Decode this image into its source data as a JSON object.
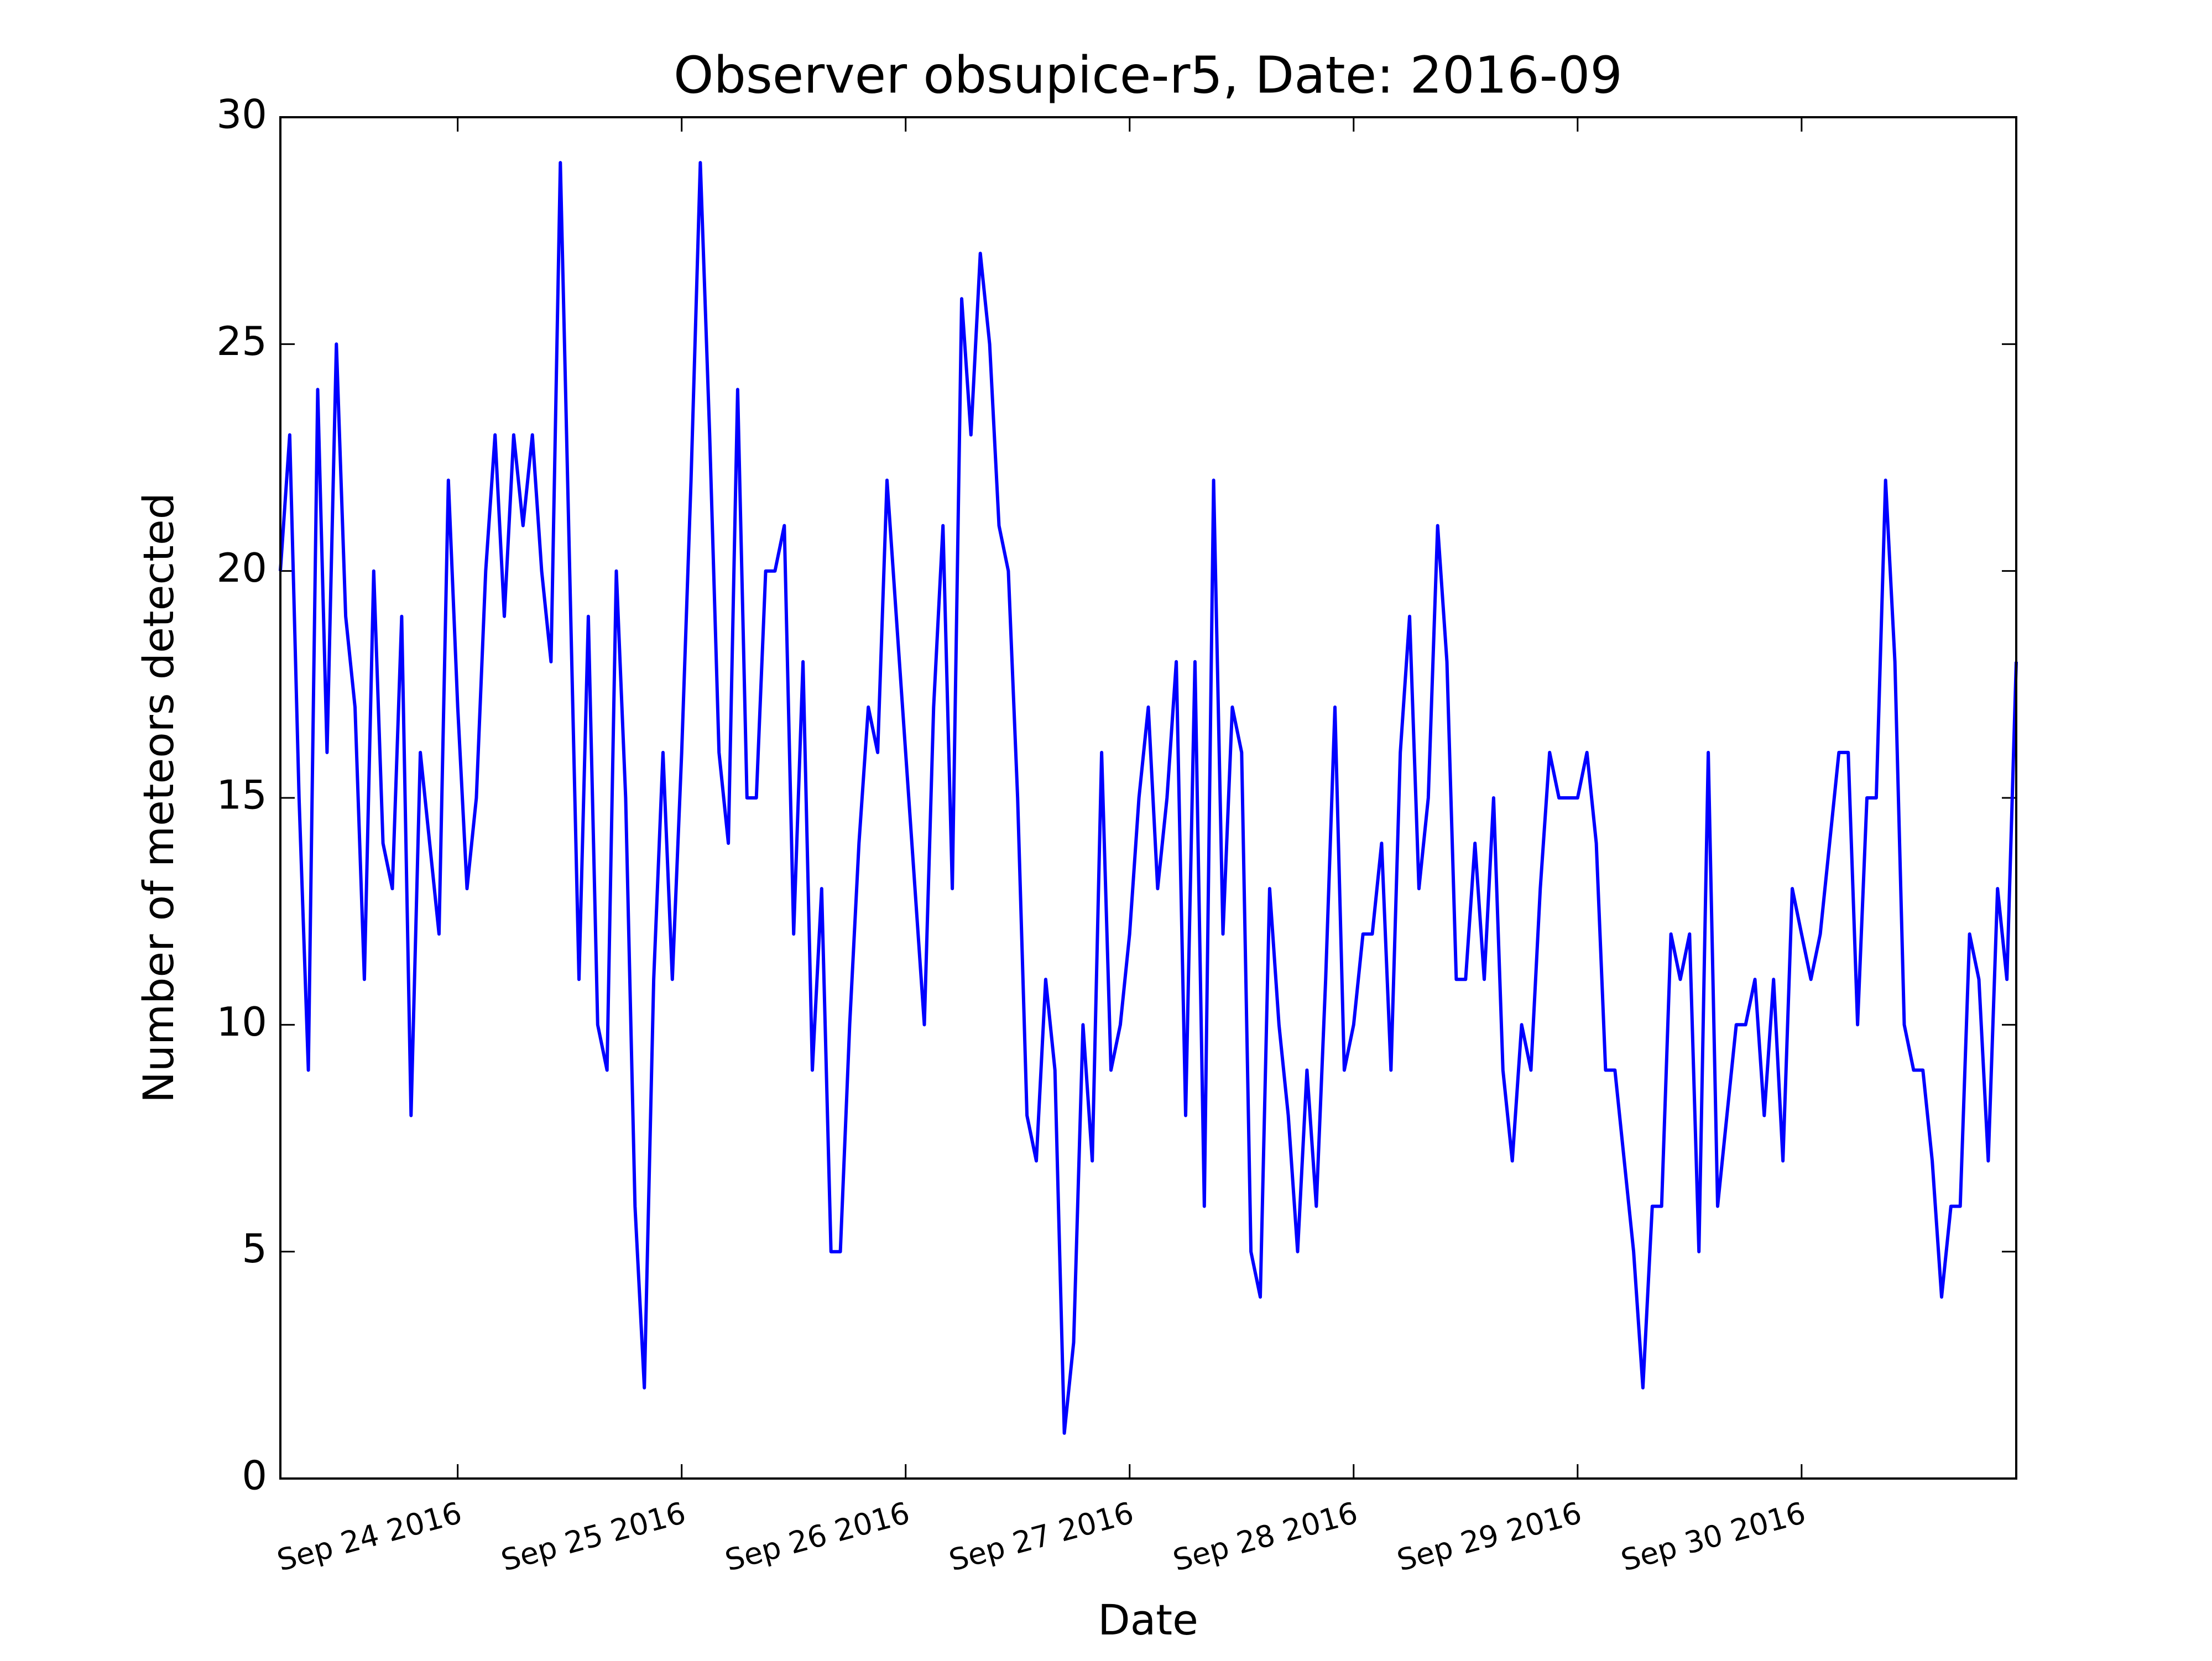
{
  "chart_data": {
    "type": "line",
    "title": "Observer obsupice-r5, Date: 2016-09",
    "xlabel": "Date",
    "ylabel": "Number of meteors detected",
    "color": "#0000ff",
    "x": [
      "2016-09-23 05:00",
      "2016-09-23 06:00",
      "2016-09-23 07:00",
      "2016-09-23 08:00",
      "2016-09-23 09:00",
      "2016-09-23 10:00",
      "2016-09-23 11:00",
      "2016-09-23 12:00",
      "2016-09-23 13:00",
      "2016-09-23 14:00",
      "2016-09-23 15:00",
      "2016-09-23 16:00",
      "2016-09-23 17:00",
      "2016-09-23 18:00",
      "2016-09-23 19:00",
      "2016-09-23 20:00",
      "2016-09-23 21:00",
      "2016-09-23 22:00",
      "2016-09-23 23:00",
      "2016-09-24 00:00",
      "2016-09-24 01:00",
      "2016-09-24 02:00",
      "2016-09-24 03:00",
      "2016-09-24 04:00",
      "2016-09-24 05:00",
      "2016-09-24 06:00",
      "2016-09-24 07:00",
      "2016-09-24 08:00",
      "2016-09-24 09:00",
      "2016-09-24 10:00",
      "2016-09-24 11:00",
      "2016-09-24 12:00",
      "2016-09-24 13:00",
      "2016-09-24 14:00",
      "2016-09-24 15:00",
      "2016-09-24 16:00",
      "2016-09-24 17:00",
      "2016-09-24 18:00",
      "2016-09-24 19:00",
      "2016-09-24 20:00",
      "2016-09-24 21:00",
      "2016-09-24 22:00",
      "2016-09-24 23:00",
      "2016-09-25 00:00",
      "2016-09-25 01:00",
      "2016-09-25 02:00",
      "2016-09-25 03:00",
      "2016-09-25 04:00",
      "2016-09-25 05:00",
      "2016-09-25 06:00",
      "2016-09-25 07:00",
      "2016-09-25 08:00",
      "2016-09-25 09:00",
      "2016-09-25 10:00",
      "2016-09-25 11:00",
      "2016-09-25 12:00",
      "2016-09-25 13:00",
      "2016-09-25 14:00",
      "2016-09-25 15:00",
      "2016-09-25 16:00",
      "2016-09-25 17:00",
      "2016-09-25 18:00",
      "2016-09-25 19:00",
      "2016-09-25 20:00",
      "2016-09-25 21:00",
      "2016-09-25 22:00",
      "2016-09-25 23:00",
      "2016-09-26 00:00",
      "2016-09-26 01:00",
      "2016-09-26 02:00",
      "2016-09-26 03:00",
      "2016-09-26 04:00",
      "2016-09-26 05:00",
      "2016-09-26 06:00",
      "2016-09-26 07:00",
      "2016-09-26 08:00",
      "2016-09-26 09:00",
      "2016-09-26 10:00",
      "2016-09-26 11:00",
      "2016-09-26 12:00",
      "2016-09-26 13:00",
      "2016-09-26 14:00",
      "2016-09-26 15:00",
      "2016-09-26 16:00",
      "2016-09-26 17:00",
      "2016-09-26 18:00",
      "2016-09-26 19:00",
      "2016-09-26 20:00",
      "2016-09-26 21:00",
      "2016-09-26 22:00",
      "2016-09-26 23:00",
      "2016-09-27 00:00",
      "2016-09-27 01:00",
      "2016-09-27 02:00",
      "2016-09-27 03:00",
      "2016-09-27 04:00",
      "2016-09-27 05:00",
      "2016-09-27 06:00",
      "2016-09-27 07:00",
      "2016-09-27 08:00",
      "2016-09-27 09:00",
      "2016-09-27 10:00",
      "2016-09-27 11:00",
      "2016-09-27 12:00",
      "2016-09-27 13:00",
      "2016-09-27 14:00",
      "2016-09-27 15:00",
      "2016-09-27 16:00",
      "2016-09-27 17:00",
      "2016-09-27 18:00",
      "2016-09-27 19:00",
      "2016-09-27 20:00",
      "2016-09-27 21:00",
      "2016-09-27 22:00",
      "2016-09-27 23:00",
      "2016-09-28 00:00",
      "2016-09-28 01:00",
      "2016-09-28 02:00",
      "2016-09-28 03:00",
      "2016-09-28 04:00",
      "2016-09-28 05:00",
      "2016-09-28 06:00",
      "2016-09-28 07:00",
      "2016-09-28 08:00",
      "2016-09-28 09:00",
      "2016-09-28 10:00",
      "2016-09-28 11:00",
      "2016-09-28 12:00",
      "2016-09-28 13:00",
      "2016-09-28 14:00",
      "2016-09-28 15:00",
      "2016-09-28 16:00",
      "2016-09-28 17:00",
      "2016-09-28 18:00",
      "2016-09-28 19:00",
      "2016-09-28 20:00",
      "2016-09-28 21:00",
      "2016-09-28 22:00",
      "2016-09-28 23:00",
      "2016-09-29 00:00",
      "2016-09-29 01:00",
      "2016-09-29 02:00",
      "2016-09-29 03:00",
      "2016-09-29 04:00",
      "2016-09-29 05:00",
      "2016-09-29 06:00",
      "2016-09-29 07:00",
      "2016-09-29 08:00",
      "2016-09-29 09:00",
      "2016-09-29 10:00",
      "2016-09-29 11:00",
      "2016-09-29 12:00",
      "2016-09-29 13:00",
      "2016-09-29 14:00",
      "2016-09-29 15:00",
      "2016-09-29 16:00",
      "2016-09-29 17:00",
      "2016-09-29 18:00",
      "2016-09-29 19:00",
      "2016-09-29 20:00",
      "2016-09-29 21:00",
      "2016-09-29 22:00",
      "2016-09-29 23:00",
      "2016-09-30 00:00",
      "2016-09-30 01:00",
      "2016-09-30 02:00",
      "2016-09-30 03:00",
      "2016-09-30 04:00",
      "2016-09-30 05:00",
      "2016-09-30 06:00",
      "2016-09-30 07:00",
      "2016-09-30 08:00",
      "2016-09-30 09:00",
      "2016-09-30 10:00",
      "2016-09-30 11:00",
      "2016-09-30 12:00",
      "2016-09-30 13:00",
      "2016-09-30 14:00",
      "2016-09-30 15:00",
      "2016-09-30 16:00",
      "2016-09-30 17:00",
      "2016-09-30 18:00",
      "2016-09-30 19:00",
      "2016-09-30 20:00",
      "2016-09-30 21:00",
      "2016-09-30 22:00",
      "2016-09-30 23:00"
    ],
    "values": [
      20,
      23,
      15,
      9,
      24,
      16,
      25,
      19,
      17,
      11,
      20,
      14,
      13,
      19,
      8,
      16,
      14,
      12,
      22,
      17,
      13,
      15,
      20,
      23,
      19,
      23,
      21,
      23,
      20,
      18,
      29,
      20,
      11,
      19,
      10,
      9,
      20,
      15,
      6,
      2,
      11,
      16,
      11,
      16,
      22,
      29,
      23,
      16,
      14,
      24,
      15,
      15,
      20,
      20,
      21,
      12,
      18,
      9,
      13,
      5,
      5,
      10,
      14,
      17,
      16,
      22,
      19,
      16,
      13,
      10,
      17,
      21,
      13,
      26,
      23,
      27,
      25,
      21,
      20,
      15,
      8,
      7,
      11,
      9,
      1,
      3,
      10,
      7,
      16,
      9,
      10,
      12,
      15,
      17,
      13,
      15,
      18,
      8,
      18,
      6,
      22,
      12,
      17,
      16,
      5,
      4,
      13,
      10,
      8,
      5,
      9,
      6,
      11,
      17,
      9,
      10,
      12,
      12,
      14,
      9,
      16,
      19,
      13,
      15,
      21,
      18,
      11,
      11,
      14,
      11,
      15,
      9,
      7,
      10,
      9,
      13,
      16,
      15,
      15,
      15,
      16,
      14,
      9,
      9,
      7,
      5,
      2,
      6,
      6,
      12,
      11,
      12,
      5,
      16,
      6,
      8,
      10,
      10,
      11,
      8,
      11,
      7,
      13,
      12,
      11,
      12,
      14,
      16,
      16,
      10,
      15,
      15,
      22,
      18,
      10,
      9,
      9,
      7,
      4,
      6,
      6,
      12,
      11,
      7,
      13,
      11,
      18
    ],
    "xlim": [
      "2016-09-23 05:00",
      "2016-09-30 23:00"
    ],
    "xticks": [
      {
        "value": "2016-09-24",
        "label": "Sep 24 2016"
      },
      {
        "value": "2016-09-25",
        "label": "Sep 25 2016"
      },
      {
        "value": "2016-09-26",
        "label": "Sep 26 2016"
      },
      {
        "value": "2016-09-27",
        "label": "Sep 27 2016"
      },
      {
        "value": "2016-09-28",
        "label": "Sep 28 2016"
      },
      {
        "value": "2016-09-29",
        "label": "Sep 29 2016"
      },
      {
        "value": "2016-09-30",
        "label": "Sep 30 2016"
      }
    ],
    "ylim": [
      0,
      30
    ],
    "yticks": [
      0,
      5,
      10,
      15,
      20,
      25,
      30
    ],
    "grid": false
  }
}
